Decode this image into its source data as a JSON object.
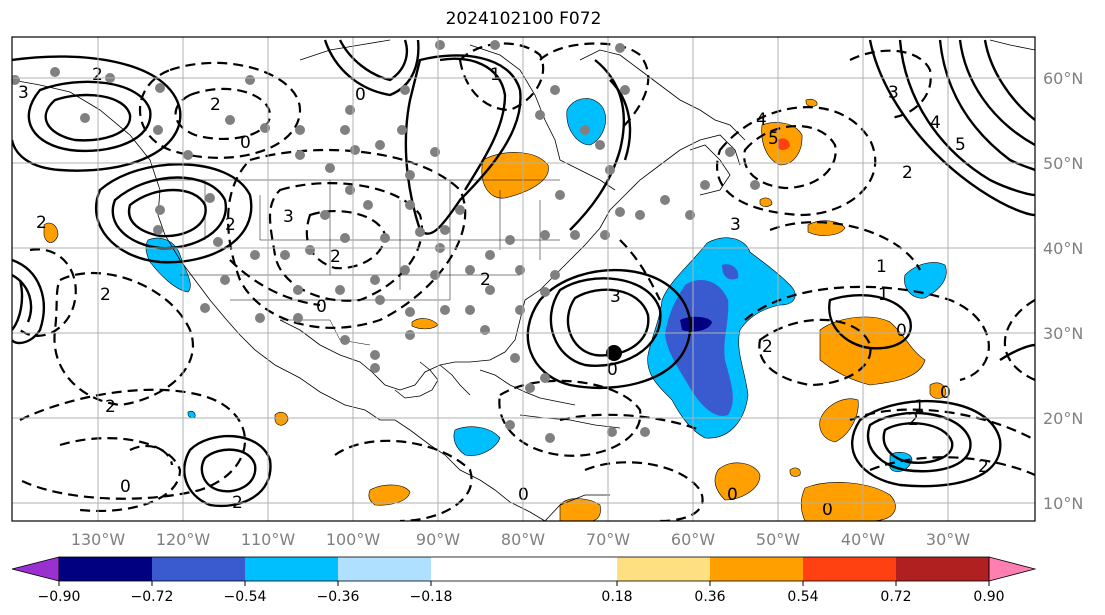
{
  "title": "2024102100 F072",
  "lon_labels": [
    "130°W",
    "120°W",
    "110°W",
    "100°W",
    "90°W",
    "80°W",
    "70°W",
    "60°W",
    "50°W",
    "40°W",
    "30°W"
  ],
  "lat_labels": [
    "60°N",
    "50°N",
    "40°N",
    "30°N",
    "20°N",
    "10°N"
  ],
  "colorbar": {
    "colors": [
      "#9b30d0",
      "#000080",
      "#3a5bd0",
      "#00bfff",
      "#b0e0ff",
      "#ffffff",
      "#ffffff",
      "#ffe080",
      "#ffa000",
      "#ff4010",
      "#b02020",
      "#ff80b0"
    ],
    "tick_labels": [
      "−0.90",
      "−0.72",
      "−0.54",
      "−0.36",
      "−0.18",
      "0.18",
      "0.36",
      "0.54",
      "0.72",
      "0.90"
    ]
  },
  "contour_labels": [
    "2",
    "2",
    "0",
    "2",
    "3",
    "0",
    "2",
    "2",
    "3",
    "2",
    "0",
    "0",
    "3",
    "0",
    "1",
    "2",
    "2",
    "0",
    "2",
    "1",
    "3",
    "4",
    "5",
    "1",
    "0",
    "1",
    "2",
    "3",
    "4",
    "5",
    "2",
    "2",
    "0",
    "2",
    "0",
    "0"
  ]
}
